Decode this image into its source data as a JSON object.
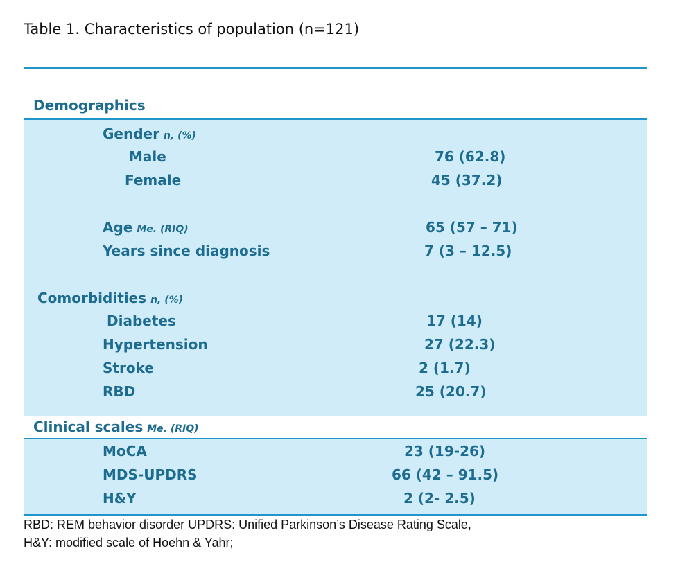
{
  "caption": "Table 1. Characteristics of population (n=121)",
  "sections": {
    "demographics": {
      "title": "Demographics",
      "gender": {
        "label": "Gender",
        "note": "n, (%)"
      },
      "male": {
        "label": "Male",
        "value": "76 (62.8)"
      },
      "female": {
        "label": "Female",
        "value": "45 (37.2)"
      },
      "age": {
        "label": "Age",
        "note": "Me. (RIQ)",
        "value": "65 (57 – 71)"
      },
      "years": {
        "label": "Years since diagnosis",
        "value": "7 (3 – 12.5)"
      }
    },
    "comorbidities": {
      "title": "Comorbidities",
      "note": "n, (%)",
      "diabetes": {
        "label": "Diabetes",
        "value": "17 (14)"
      },
      "hypertension": {
        "label": "Hypertension",
        "value": "27 (22.3)"
      },
      "stroke": {
        "label": "Stroke",
        "value": "2 (1.7)"
      },
      "rbd": {
        "label": "RBD",
        "value": "25 (20.7)"
      }
    },
    "clinical": {
      "title": "Clinical scales",
      "note": "Me. (RIQ)",
      "moca": {
        "label": "MoCA",
        "value": "23 (19-26)"
      },
      "mdsupdrs": {
        "label": "MDS-UPDRS",
        "value": "66 (42 – 91.5)"
      },
      "hy": {
        "label": "H&Y",
        "value": "2 (2- 2.5)"
      }
    }
  },
  "footer": {
    "line1": "RBD: REM behavior disorder UPDRS: Unified Parkinson’s Disease Rating Scale,",
    "line2": "H&Y: modified scale of Hoehn & Yahr;"
  },
  "colors": {
    "accent": "#1f95c9",
    "band": "#cfecf8",
    "text": "#1d6c8f"
  }
}
